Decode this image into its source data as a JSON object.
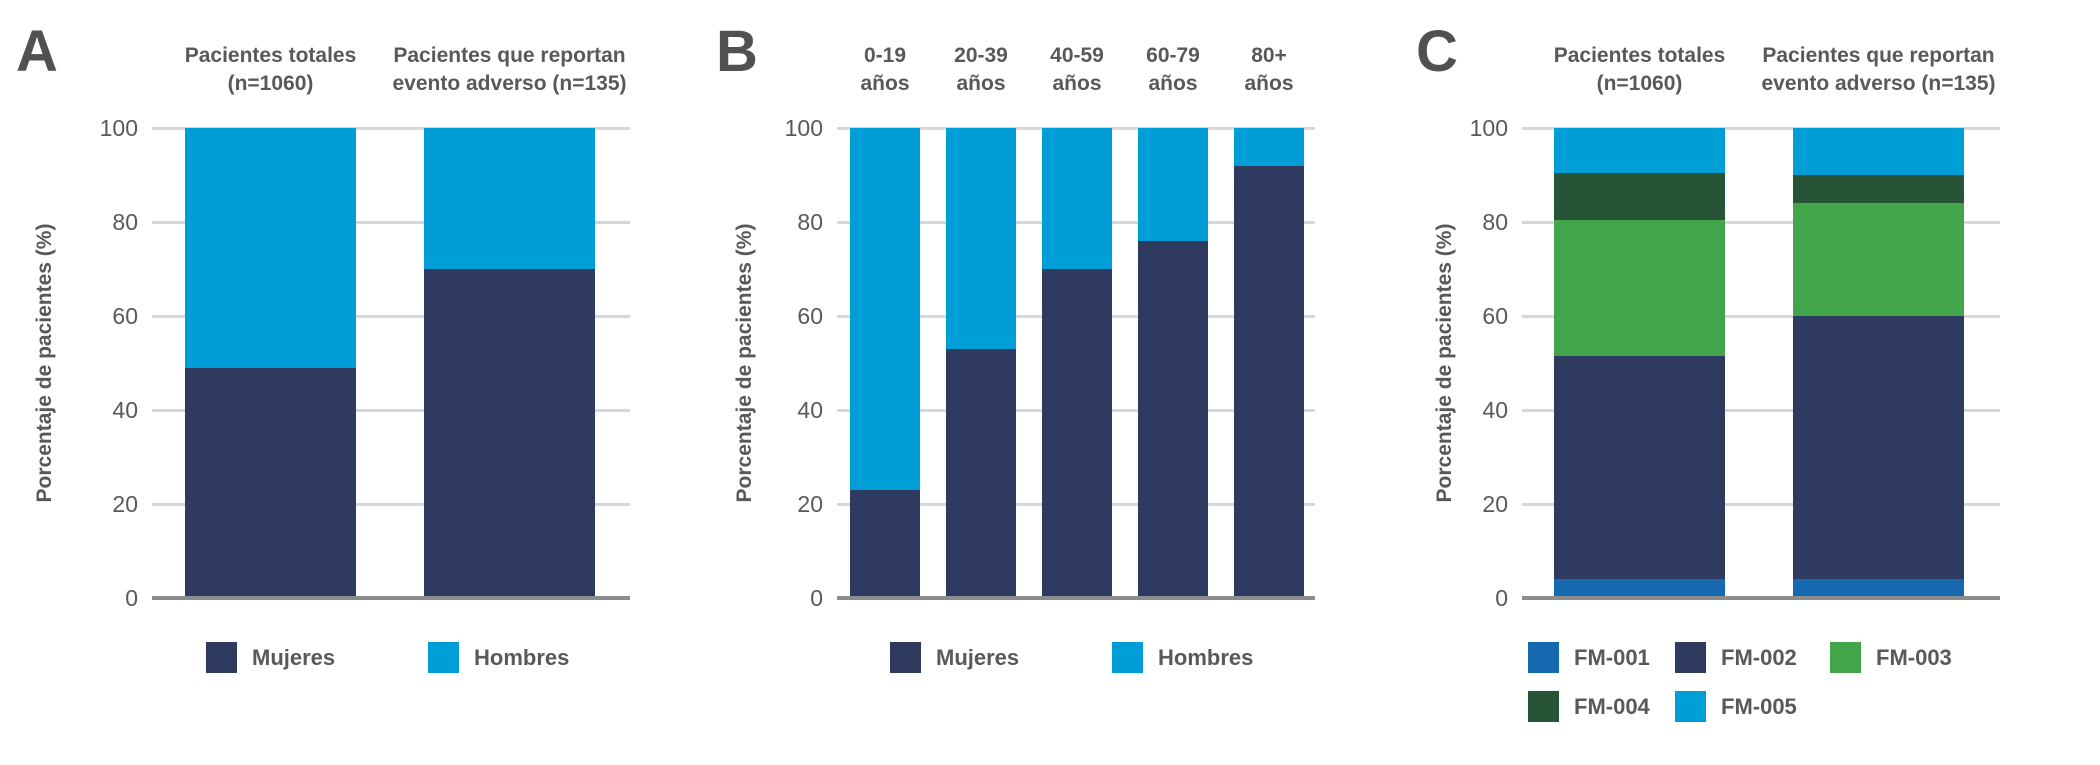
{
  "colors": {
    "text": "#58595b",
    "panel_letter": "#4f5153",
    "gridline": "#d6d7d9",
    "baseline": "#8a8c8e"
  },
  "chart_data": [
    {
      "id": "A",
      "type": "bar",
      "stacked": true,
      "categories": [
        [
          "Pacientes totales",
          "(n=1060)"
        ],
        [
          "Pacientes que reportan",
          "evento adverso (n=135)"
        ]
      ],
      "series": [
        {
          "name": "Mujeres",
          "color": "#2e3a60",
          "values": [
            49,
            70
          ]
        },
        {
          "name": "Hombres",
          "color": "#009ed6",
          "values": [
            51,
            30
          ]
        }
      ],
      "ylabel": "Porcentaje de pacientes (%)",
      "ylim": [
        0,
        100
      ],
      "yticks": [
        0,
        20,
        40,
        60,
        80,
        100
      ],
      "ytick_labels": [
        "0",
        "20",
        "40",
        "60",
        "80",
        "100"
      ],
      "grid": true,
      "legend_position": "bottom"
    },
    {
      "id": "B",
      "type": "bar",
      "stacked": true,
      "categories": [
        [
          "0-19",
          "años"
        ],
        [
          "20-39",
          "años"
        ],
        [
          "40-59",
          "años"
        ],
        [
          "60-79",
          "años"
        ],
        [
          "80+",
          "años"
        ]
      ],
      "series": [
        {
          "name": "Mujeres",
          "color": "#2e3a60",
          "values": [
            23,
            53,
            70,
            76,
            92
          ]
        },
        {
          "name": "Hombres",
          "color": "#009ed6",
          "values": [
            77,
            47,
            30,
            24,
            8
          ]
        }
      ],
      "ylabel": "Porcentaje de pacientes (%)",
      "ylim": [
        0,
        100
      ],
      "yticks": [
        0,
        20,
        40,
        60,
        80,
        100
      ],
      "ytick_labels": [
        "0",
        "20",
        "40",
        "60",
        "80",
        "100"
      ],
      "grid": true,
      "legend_position": "bottom"
    },
    {
      "id": "C",
      "type": "bar",
      "stacked": true,
      "categories": [
        [
          "Pacientes totales",
          "(n=1060)"
        ],
        [
          "Pacientes que reportan",
          "evento adverso (n=135)"
        ]
      ],
      "series": [
        {
          "name": "FM-001",
          "color": "#1769af",
          "values": [
            4,
            4
          ]
        },
        {
          "name": "FM-002",
          "color": "#2e3a60",
          "values": [
            47.5,
            56
          ]
        },
        {
          "name": "FM-003",
          "color": "#42a54a",
          "values": [
            29,
            24
          ]
        },
        {
          "name": "FM-004",
          "color": "#275437",
          "values": [
            10,
            6
          ]
        },
        {
          "name": "FM-005",
          "color": "#009ed6",
          "values": [
            9.5,
            10
          ]
        }
      ],
      "ylabel": "Porcentaje de pacientes (%)",
      "ylim": [
        0,
        100
      ],
      "yticks": [
        0,
        20,
        40,
        60,
        80,
        100
      ],
      "ytick_labels": [
        "0",
        "20",
        "40",
        "60",
        "80",
        "100"
      ],
      "grid": true,
      "legend_position": "bottom"
    }
  ]
}
